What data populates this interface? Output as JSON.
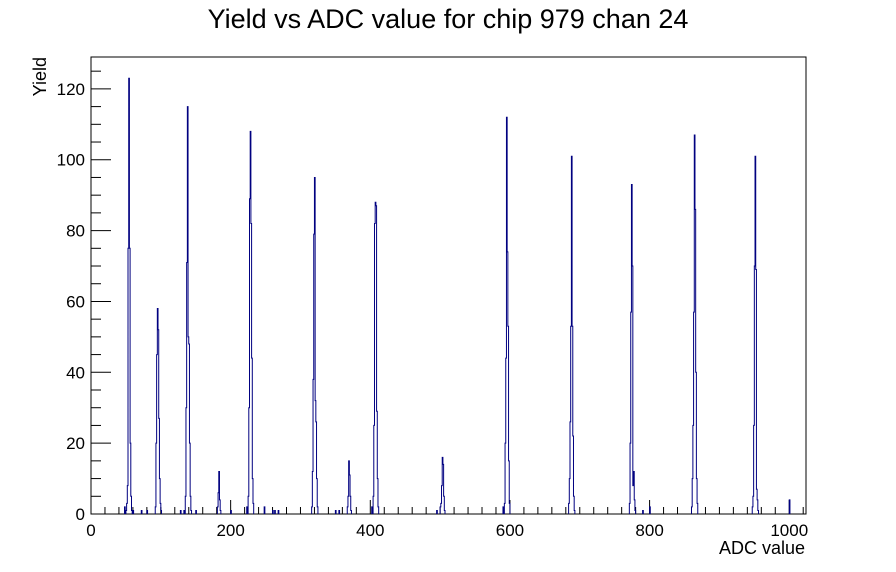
{
  "chart_data": {
    "type": "bar",
    "title": "Yield vs ADC value for chip 979 chan 24",
    "xlabel": "ADC value",
    "ylabel": "Yield",
    "xlim": [
      0,
      1024
    ],
    "ylim": [
      0,
      129
    ],
    "x_ticks": [
      0,
      200,
      400,
      600,
      800,
      1000
    ],
    "y_ticks": [
      0,
      20,
      40,
      60,
      80,
      100,
      120
    ],
    "grid": false,
    "legend": "none",
    "line_color": "#000080",
    "bin_width": 1,
    "bins": [
      [
        48,
        2
      ],
      [
        50,
        1
      ],
      [
        51,
        3
      ],
      [
        52,
        8
      ],
      [
        53,
        75
      ],
      [
        54,
        123
      ],
      [
        55,
        75
      ],
      [
        56,
        20
      ],
      [
        57,
        5
      ],
      [
        58,
        1
      ],
      [
        60,
        1
      ],
      [
        72,
        1
      ],
      [
        80,
        1
      ],
      [
        92,
        2
      ],
      [
        93,
        20
      ],
      [
        94,
        45
      ],
      [
        95,
        58
      ],
      [
        96,
        52
      ],
      [
        97,
        27
      ],
      [
        98,
        10
      ],
      [
        99,
        3
      ],
      [
        100,
        1
      ],
      [
        128,
        1
      ],
      [
        133,
        1
      ],
      [
        135,
        5
      ],
      [
        136,
        30
      ],
      [
        137,
        71
      ],
      [
        138,
        115
      ],
      [
        139,
        50
      ],
      [
        140,
        48
      ],
      [
        141,
        20
      ],
      [
        142,
        5
      ],
      [
        143,
        1
      ],
      [
        150,
        1
      ],
      [
        181,
        2
      ],
      [
        182,
        6
      ],
      [
        183,
        12
      ],
      [
        184,
        4
      ],
      [
        185,
        1
      ],
      [
        200,
        1
      ],
      [
        223,
        2
      ],
      [
        225,
        5
      ],
      [
        226,
        30
      ],
      [
        227,
        89
      ],
      [
        228,
        108
      ],
      [
        229,
        82
      ],
      [
        230,
        44
      ],
      [
        231,
        10
      ],
      [
        232,
        3
      ],
      [
        248,
        2
      ],
      [
        260,
        1
      ],
      [
        263,
        1
      ],
      [
        268,
        1
      ],
      [
        316,
        2
      ],
      [
        317,
        12
      ],
      [
        318,
        38
      ],
      [
        319,
        79
      ],
      [
        320,
        95
      ],
      [
        321,
        32
      ],
      [
        322,
        26
      ],
      [
        323,
        10
      ],
      [
        324,
        2
      ],
      [
        350,
        1
      ],
      [
        355,
        1
      ],
      [
        367,
        2
      ],
      [
        368,
        5
      ],
      [
        369,
        15
      ],
      [
        370,
        11
      ],
      [
        371,
        5
      ],
      [
        372,
        1
      ],
      [
        402,
        2
      ],
      [
        404,
        5
      ],
      [
        405,
        25
      ],
      [
        406,
        82
      ],
      [
        407,
        88
      ],
      [
        408,
        87
      ],
      [
        409,
        29
      ],
      [
        410,
        10
      ],
      [
        411,
        2
      ],
      [
        495,
        1
      ],
      [
        500,
        2
      ],
      [
        501,
        3
      ],
      [
        502,
        8
      ],
      [
        503,
        16
      ],
      [
        504,
        14
      ],
      [
        505,
        5
      ],
      [
        506,
        1
      ],
      [
        590,
        2
      ],
      [
        592,
        3
      ],
      [
        593,
        20
      ],
      [
        594,
        44
      ],
      [
        595,
        112
      ],
      [
        596,
        74
      ],
      [
        597,
        53
      ],
      [
        598,
        15
      ],
      [
        599,
        3
      ],
      [
        684,
        3
      ],
      [
        685,
        10
      ],
      [
        686,
        26
      ],
      [
        687,
        53
      ],
      [
        688,
        101
      ],
      [
        689,
        53
      ],
      [
        690,
        22
      ],
      [
        691,
        5
      ],
      [
        692,
        1
      ],
      [
        771,
        3
      ],
      [
        772,
        20
      ],
      [
        773,
        57
      ],
      [
        774,
        93
      ],
      [
        775,
        70
      ],
      [
        776,
        8
      ],
      [
        777,
        12
      ],
      [
        778,
        4
      ],
      [
        779,
        1
      ],
      [
        790,
        1
      ],
      [
        800,
        2
      ],
      [
        860,
        2
      ],
      [
        861,
        10
      ],
      [
        862,
        25
      ],
      [
        863,
        57
      ],
      [
        864,
        107
      ],
      [
        865,
        86
      ],
      [
        866,
        40
      ],
      [
        867,
        10
      ],
      [
        868,
        3
      ],
      [
        947,
        2
      ],
      [
        948,
        5
      ],
      [
        949,
        25
      ],
      [
        950,
        70
      ],
      [
        951,
        101
      ],
      [
        952,
        69
      ],
      [
        953,
        7
      ],
      [
        954,
        4
      ],
      [
        955,
        1
      ],
      [
        1000,
        4
      ]
    ]
  }
}
